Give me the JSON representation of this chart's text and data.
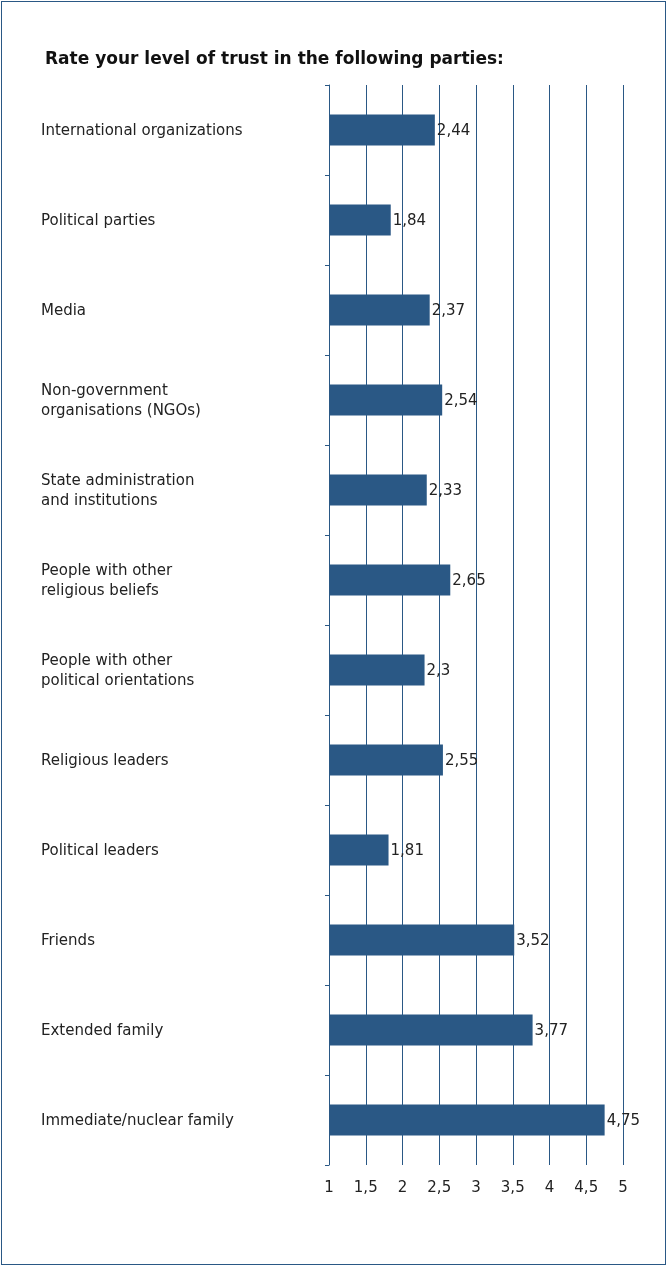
{
  "chart_data": {
    "type": "bar",
    "orientation": "horizontal",
    "title": "Rate your level of trust in the following parties:",
    "categories": [
      "International organizations",
      "Political parties",
      "Media",
      "Non-government\norganisations (NGOs)",
      "State administration\nand institutions",
      "People with other\nreligious beliefs",
      "People with other\npolitical orientations",
      "Religious leaders",
      "Political leaders",
      "Friends",
      "Extended family",
      "Immediate/nuclear family"
    ],
    "values": [
      2.44,
      1.84,
      2.37,
      2.54,
      2.33,
      2.65,
      2.3,
      2.55,
      1.81,
      3.52,
      3.77,
      4.75
    ],
    "value_labels": [
      "2,44",
      "1,84",
      "2,37",
      "2,54",
      "2,33",
      "2,65",
      "2,3",
      "2,55",
      "1,81",
      "3,52",
      "3,77",
      "4,75"
    ],
    "color": "#2a5885",
    "xlim": [
      1,
      5
    ],
    "xticks": [
      1,
      {
        "value": 1.5,
        "label": "1,5"
      },
      2,
      {
        "value": 2.5,
        "label": "2,5"
      },
      3,
      {
        "value": 3.5,
        "label": "3,5"
      },
      4,
      {
        "value": 4.5,
        "label": "4,5"
      },
      5
    ],
    "grid": "x"
  }
}
